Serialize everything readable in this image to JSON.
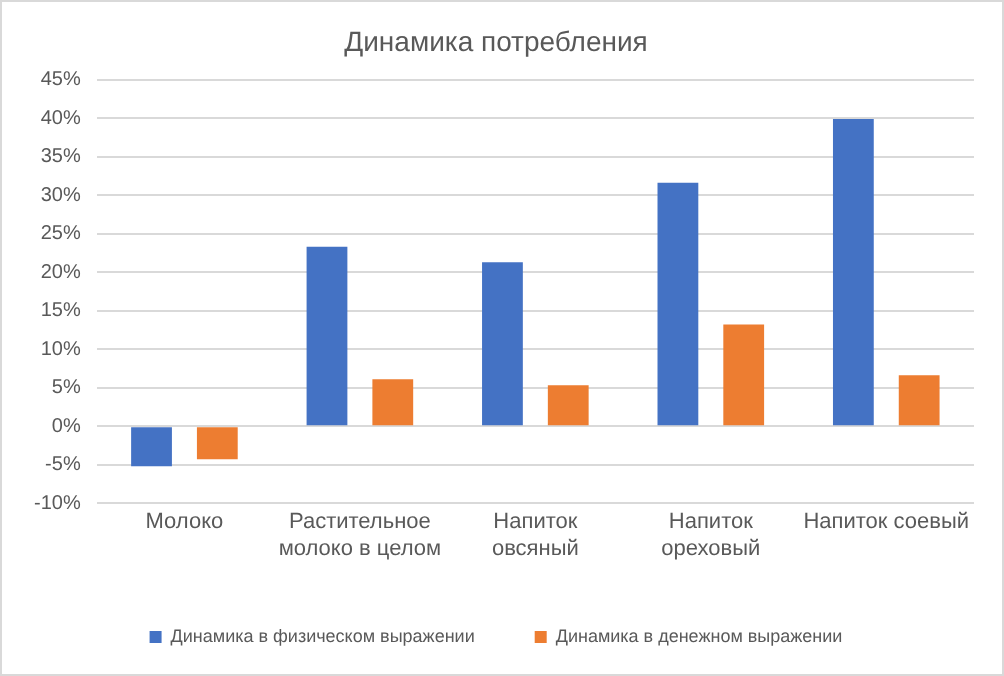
{
  "chart_data": {
    "type": "bar",
    "title": "Динамика потребления",
    "categories": [
      "Молоко",
      "Растительное молоко в целом",
      "Напиток овсяный",
      "Напиток ореховый",
      "Напиток соевый"
    ],
    "series": [
      {
        "name": "Динамика в физическом выражении",
        "color": "#4472c4",
        "values": [
          -5.2,
          23.3,
          21.3,
          31.6,
          39.9
        ]
      },
      {
        "name": "Динамика в денежном выражении",
        "color": "#ed7d31",
        "values": [
          -4.3,
          6.1,
          5.3,
          13.2,
          6.6
        ]
      }
    ],
    "ylim": [
      -10,
      45
    ],
    "yticks": [
      {
        "value": -10,
        "label": "-10%"
      },
      {
        "value": -5,
        "label": "-5%"
      },
      {
        "value": 0,
        "label": "0%"
      },
      {
        "value": 5,
        "label": "5%"
      },
      {
        "value": 10,
        "label": "10%"
      },
      {
        "value": 15,
        "label": "15%"
      },
      {
        "value": 20,
        "label": "20%"
      },
      {
        "value": 25,
        "label": "25%"
      },
      {
        "value": 30,
        "label": "30%"
      },
      {
        "value": 35,
        "label": "35%"
      },
      {
        "value": 40,
        "label": "40%"
      },
      {
        "value": 45,
        "label": "45%"
      }
    ],
    "grid": "y",
    "legend": "bottom"
  }
}
